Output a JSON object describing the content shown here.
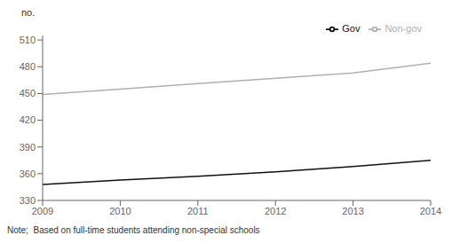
{
  "chart_data": {
    "type": "line",
    "ylabel": "no.",
    "annotations": [
      "Note;  Based on full-time students attending non-special schools"
    ],
    "x": [
      2009,
      2010,
      2011,
      2012,
      2013,
      2014
    ],
    "series": [
      {
        "name": "Gov",
        "color": "#111111",
        "values": [
          348,
          353,
          357,
          362,
          368,
          375
        ]
      },
      {
        "name": "Non-gov",
        "color": "#b0b0b0",
        "values": [
          449,
          455,
          461,
          467,
          473,
          484
        ]
      }
    ],
    "xlim": [
      2009,
      2014
    ],
    "xticks": [
      2009,
      2010,
      2011,
      2012,
      2013,
      2014
    ],
    "ylim": [
      330,
      515
    ],
    "yticks": [
      330,
      360,
      390,
      420,
      450,
      480,
      510
    ],
    "grid": false,
    "legend": "upper right"
  }
}
